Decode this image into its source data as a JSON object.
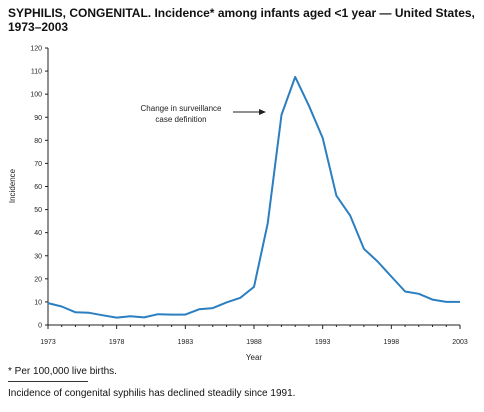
{
  "chart_data": {
    "type": "line",
    "title": "SYPHILIS, CONGENITAL. Incidence* among infants aged <1 year — United States, 1973–2003",
    "xlabel": "Year",
    "ylabel": "Incidence",
    "xlim": [
      1973,
      2003
    ],
    "ylim": [
      0,
      120
    ],
    "x_ticks": [
      1973,
      1978,
      1983,
      1988,
      1993,
      1998,
      2003
    ],
    "y_ticks": [
      0,
      10,
      20,
      30,
      40,
      50,
      60,
      70,
      80,
      90,
      100,
      110,
      120
    ],
    "grid": false,
    "line_color": "#2b7fc0",
    "series": [
      {
        "x": [
          1973,
          1974,
          1975,
          1976,
          1977,
          1978,
          1979,
          1980,
          1981,
          1982,
          1983,
          1984,
          1985,
          1986,
          1987,
          1988,
          1989,
          1990,
          1991,
          1992,
          1993,
          1994,
          1995,
          1996,
          1997,
          1998,
          1999,
          2000,
          2001,
          2002,
          2003
        ],
        "values": [
          9.5,
          8.0,
          5.5,
          5.3,
          4.2,
          3.2,
          3.8,
          3.3,
          4.7,
          4.5,
          4.5,
          6.8,
          7.3,
          9.8,
          11.8,
          16.5,
          44.0,
          91.0,
          107.5,
          95.0,
          81.0,
          56.0,
          47.5,
          33.0,
          27.5,
          21.0,
          14.5,
          13.5,
          11.0,
          10.0,
          10.0
        ]
      }
    ],
    "annotation": {
      "lines": [
        "Change in surveillance",
        "case definition"
      ],
      "arrow_to_year": 1989
    }
  },
  "footnote": "* Per 100,000 live births.",
  "caption": "Incidence of congenital syphilis has declined steadily since 1991."
}
